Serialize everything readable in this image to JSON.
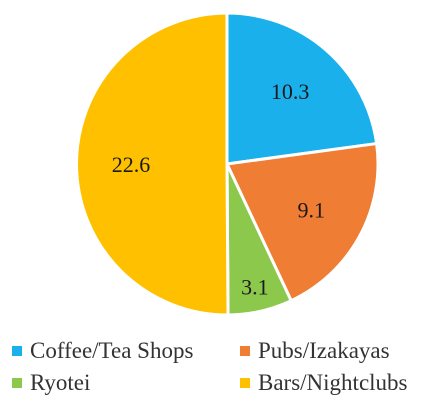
{
  "chart_data": {
    "type": "pie",
    "categories": [
      "Coffee/Tea Shops",
      "Pubs/Izakayas",
      "Ryotei",
      "Bars/Nightclubs"
    ],
    "values": [
      10.3,
      9.1,
      3.1,
      22.6
    ],
    "colors": [
      "#1ab0ec",
      "#ef7d34",
      "#8cc84b",
      "#ffc000"
    ],
    "title": "",
    "legend_placement": "bottom",
    "start_angle": "12 o'clock",
    "direction": "clockwise"
  }
}
